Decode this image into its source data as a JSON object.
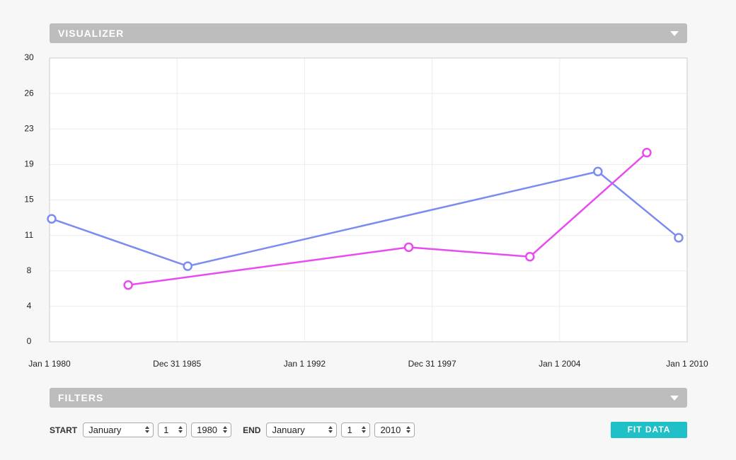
{
  "header": {
    "title": "VISUALIZER"
  },
  "chart_data": {
    "type": "line",
    "xlim": [
      1980,
      2010
    ],
    "xticks": [
      {
        "value": 1980,
        "label": "Jan 1 1980"
      },
      {
        "value": 1986,
        "label": "Dec 31 1985"
      },
      {
        "value": 1992,
        "label": "Jan 1 1992"
      },
      {
        "value": 1998,
        "label": "Dec 31 1997"
      },
      {
        "value": 2004,
        "label": "Jan 1 2004"
      },
      {
        "value": 2010,
        "label": "Jan 1 2010"
      }
    ],
    "ylim": [
      0,
      30
    ],
    "yticks": [
      0,
      {
        "value": 3.75,
        "label": "4"
      },
      {
        "value": 7.5,
        "label": "8"
      },
      {
        "value": 11.25,
        "label": "11"
      },
      15,
      {
        "value": 18.75,
        "label": "19"
      },
      {
        "value": 22.5,
        "label": "23"
      },
      {
        "value": 26.25,
        "label": "26"
      },
      30
    ],
    "grid": true,
    "series": [
      {
        "color": "#7b8cf0",
        "x": [
          1980.1,
          1986.5,
          2005.8,
          2009.6
        ],
        "values": [
          13,
          8,
          18,
          11
        ]
      },
      {
        "color": "#e84cf0",
        "x": [
          1983.7,
          1996.9,
          2002.6,
          2008.1
        ],
        "values": [
          6,
          10,
          9,
          20
        ]
      }
    ]
  },
  "filters": {
    "title": "FILTERS",
    "start_label": "START",
    "start": {
      "month": "January",
      "day": "1",
      "year": "1980"
    },
    "end_label": "END",
    "end": {
      "month": "January",
      "day": "1",
      "year": "2010"
    },
    "button": "FIT DATA"
  }
}
